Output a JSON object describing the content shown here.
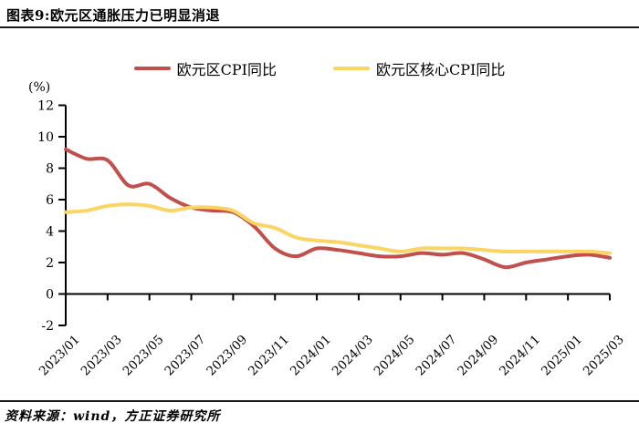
{
  "page": {
    "title": "图表9:欧元区通胀压力已明显消退",
    "source": "资料来源：wind，方正证券研究所"
  },
  "legend": [
    {
      "label": "欧元区CPI同比",
      "color": "#C14F4B"
    },
    {
      "label": "欧元区核心CPI同比",
      "color": "#FCD464"
    }
  ],
  "chart_data": {
    "type": "line",
    "title": "图表9:欧元区通胀压力已明显消退",
    "unit_label": "(%)",
    "ylim": [
      -2,
      12
    ],
    "y_ticks": [
      12,
      10,
      8,
      6,
      4,
      2,
      0,
      -2
    ],
    "x_tick_every": 2,
    "grid": false,
    "legend_position": "top",
    "x": [
      "2023/01",
      "2023/02",
      "2023/03",
      "2023/04",
      "2023/05",
      "2023/06",
      "2023/07",
      "2023/08",
      "2023/09",
      "2023/10",
      "2023/11",
      "2023/12",
      "2024/01",
      "2024/02",
      "2024/03",
      "2024/04",
      "2024/05",
      "2024/06",
      "2024/07",
      "2024/08",
      "2024/09",
      "2024/10",
      "2024/11",
      "2024/12",
      "2025/01",
      "2025/02",
      "2025/03"
    ],
    "series": [
      {
        "name": "欧元区CPI同比",
        "color": "#C14F4B",
        "values": [
          9.2,
          8.6,
          8.5,
          6.9,
          7.0,
          6.1,
          5.5,
          5.3,
          5.2,
          4.3,
          2.9,
          2.4,
          2.9,
          2.8,
          2.6,
          2.4,
          2.4,
          2.6,
          2.5,
          2.6,
          2.2,
          1.7,
          2.0,
          2.2,
          2.4,
          2.5,
          2.3
        ]
      },
      {
        "name": "欧元区核心CPI同比",
        "color": "#FCD464",
        "values": [
          5.2,
          5.3,
          5.6,
          5.7,
          5.6,
          5.3,
          5.5,
          5.5,
          5.3,
          4.5,
          4.2,
          3.6,
          3.4,
          3.3,
          3.1,
          2.9,
          2.7,
          2.9,
          2.9,
          2.9,
          2.8,
          2.7,
          2.7,
          2.7,
          2.7,
          2.7,
          2.6
        ]
      }
    ]
  }
}
